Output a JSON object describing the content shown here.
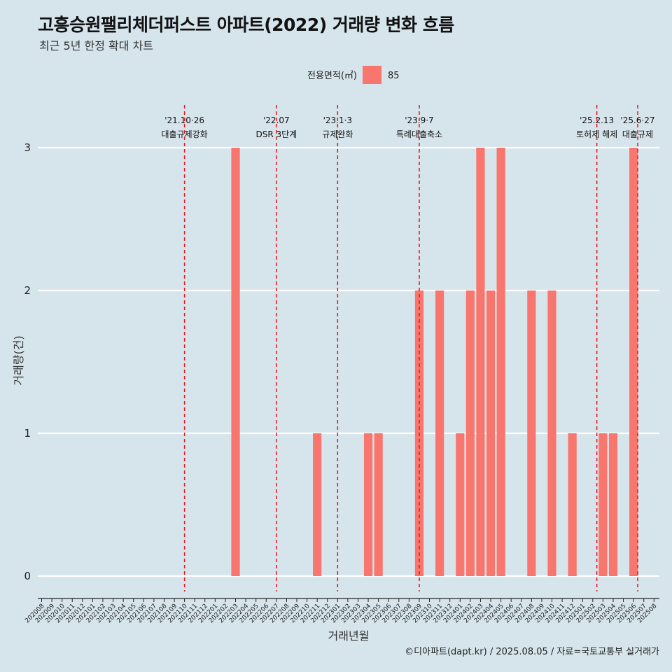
{
  "chart_data": {
    "type": "bar",
    "title": "고흥승원팰리체더퍼스트 아파트(2022) 거래량 변화 흐름",
    "subtitle": "최근 5년 한정 확대 차트",
    "xlabel": "거래년월",
    "ylabel": "거래량(건)",
    "caption": "©디아파트(dapt.kr) / 2025.08.05 / 자료=국토교통부 실거래가",
    "legend": {
      "title": "전용면적(㎡)",
      "entries": [
        "85"
      ],
      "placement": "top"
    },
    "color": "#f8766d",
    "annotation_color": "#e8141e",
    "ylim": [
      0,
      3
    ],
    "yticks": [
      0,
      1,
      2,
      3
    ],
    "grid": true,
    "categories": [
      "202008",
      "202009",
      "202010",
      "202011",
      "202012",
      "202101",
      "202102",
      "202103",
      "202104",
      "202105",
      "202106",
      "202107",
      "202108",
      "202109",
      "202110",
      "202111",
      "202112",
      "202201",
      "202202",
      "202203",
      "202204",
      "202205",
      "202206",
      "202207",
      "202208",
      "202209",
      "202210",
      "202211",
      "202212",
      "202301",
      "202302",
      "202303",
      "202304",
      "202305",
      "202306",
      "202307",
      "202308",
      "202309",
      "202310",
      "202311",
      "202312",
      "202401",
      "202402",
      "202403",
      "202404",
      "202405",
      "202406",
      "202407",
      "202408",
      "202409",
      "202410",
      "202411",
      "202412",
      "202501",
      "202502",
      "202503",
      "202504",
      "202505",
      "202506",
      "202507",
      "202508"
    ],
    "series": [
      {
        "name": "85",
        "values": [
          0,
          0,
          0,
          0,
          0,
          0,
          0,
          0,
          0,
          0,
          0,
          0,
          0,
          0,
          0,
          0,
          0,
          0,
          0,
          3,
          0,
          0,
          0,
          0,
          0,
          0,
          0,
          1,
          0,
          0,
          0,
          0,
          1,
          1,
          0,
          0,
          0,
          2,
          0,
          2,
          0,
          1,
          2,
          3,
          2,
          3,
          0,
          0,
          2,
          0,
          2,
          0,
          1,
          0,
          0,
          1,
          1,
          0,
          3,
          0,
          0
        ]
      }
    ],
    "annotations": [
      {
        "x": 14.0,
        "date_label": "'21.10·26",
        "label": "대출규제강화"
      },
      {
        "x": 23.0,
        "date_label": "'22.07",
        "label": "DSR 3단계"
      },
      {
        "x": 29.0,
        "date_label": "'23.1·3",
        "label": "규제완화"
      },
      {
        "x": 37.0,
        "date_label": "'23.9·7",
        "label": "특례대출축소"
      },
      {
        "x": 54.4,
        "date_label": "'25.2.13",
        "label": "토허제 해제"
      },
      {
        "x": 58.4,
        "date_label": "'25.6·27",
        "label": "대출규제"
      }
    ]
  }
}
